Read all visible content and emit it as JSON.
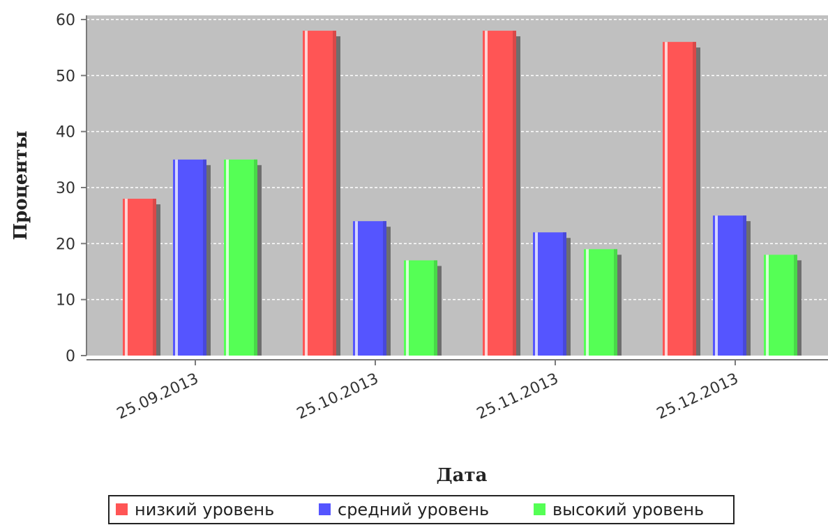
{
  "chart_data": {
    "type": "bar",
    "title": "",
    "xlabel": "Дата",
    "ylabel": "Проценты",
    "ylim": [
      0,
      60
    ],
    "yticks": [
      0,
      10,
      20,
      30,
      40,
      50,
      60
    ],
    "categories": [
      "25.09.2013",
      "25.10.2013",
      "25.11.2013",
      "25.12.2013"
    ],
    "series": [
      {
        "name": "низкий уровень",
        "color": "#ff5555",
        "values": [
          28,
          58,
          58,
          56
        ]
      },
      {
        "name": "средний уровень",
        "color": "#5555ff",
        "values": [
          35,
          24,
          22,
          25
        ]
      },
      {
        "name": "высокий уровень",
        "color": "#55ff55",
        "values": [
          35,
          17,
          19,
          18
        ]
      }
    ],
    "grid": true,
    "plot_background": "#c0c0c0",
    "legend_position": "bottom"
  }
}
